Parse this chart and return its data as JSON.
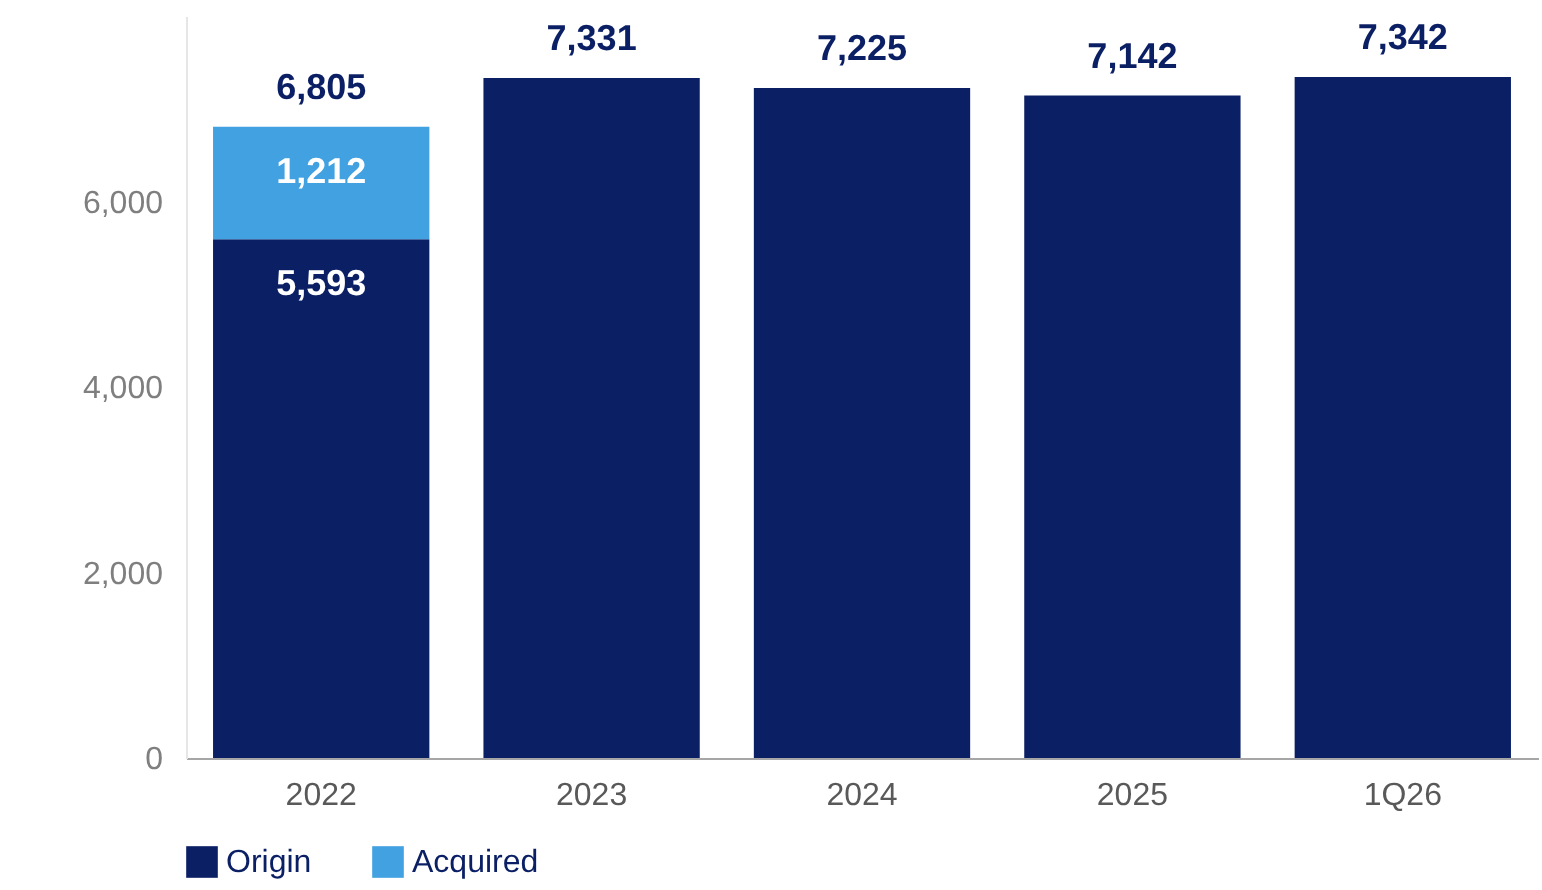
{
  "chart_data": {
    "type": "bar",
    "stacked": true,
    "categories": [
      "2022",
      "2023",
      "2024",
      "2025",
      "1Q26"
    ],
    "series": [
      {
        "name": "Origin",
        "color": "#0b1f65",
        "values": [
          5593,
          7331,
          7225,
          7142,
          7342
        ],
        "value_labels": [
          "5,593",
          null,
          null,
          null,
          null
        ]
      },
      {
        "name": "Acquired",
        "color": "#41a1e1",
        "values": [
          1212,
          null,
          null,
          null,
          null
        ],
        "value_labels": [
          "1,212",
          null,
          null,
          null,
          null
        ]
      }
    ],
    "totals": [
      "6,805",
      "7,331",
      "7,225",
      "7,142",
      "7,342"
    ],
    "ylim": [
      0,
      8000
    ],
    "yticks": [
      0,
      {
        "value": 2000,
        "label": "2,000"
      },
      {
        "value": 4000,
        "label": "4,000"
      },
      {
        "value": 6000,
        "label": "6,000"
      }
    ],
    "grid": false,
    "legend": "bottom"
  }
}
